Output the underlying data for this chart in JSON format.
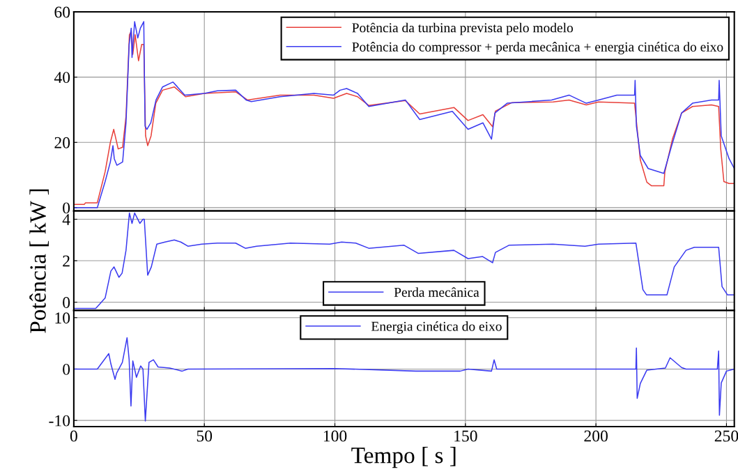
{
  "chart_data": [
    {
      "type": "line",
      "xlim": [
        0,
        253
      ],
      "xticks": [
        0,
        50,
        100,
        150,
        200,
        250
      ],
      "ylim": [
        -1,
        60
      ],
      "yticks": [
        0,
        20,
        40,
        60
      ],
      "grid": true,
      "legend": "top right",
      "tick_labels": "y",
      "series": [
        {
          "name": "Potência da turbina prevista pelo modelo",
          "color": "#e8403a",
          "x": [
            0,
            4,
            4.5,
            9,
            12,
            14,
            15.3,
            17,
            18.7,
            20,
            21.3,
            22,
            22.6,
            23.5,
            24.8,
            26,
            26.8,
            27.5,
            28.3,
            29.6,
            31.4,
            34,
            38.5,
            42.8,
            50,
            62,
            66.5,
            79,
            92,
            99.5,
            104.5,
            108.7,
            113,
            127,
            132.5,
            145.6,
            151,
            156.7,
            160.4,
            161.5,
            167.8,
            183.6,
            189.7,
            196.3,
            201,
            214.8,
            217,
            219.5,
            221.3,
            226,
            226.4,
            229.3,
            232.8,
            237,
            244.3,
            247,
            247.8,
            249,
            251,
            253
          ],
          "values": [
            1,
            1,
            1.5,
            1.5,
            11,
            20,
            24,
            18,
            18.5,
            28,
            53,
            54,
            47,
            53,
            45,
            50,
            50,
            22,
            19,
            22,
            32,
            36,
            37,
            34,
            35,
            35.5,
            33,
            34.5,
            34.5,
            33.5,
            35,
            34,
            31.3,
            32.8,
            28.7,
            30.7,
            26.7,
            28.5,
            24.8,
            29.6,
            32.2,
            32.4,
            33,
            31.5,
            32.4,
            32,
            14.6,
            7.8,
            6.7,
            6.7,
            11,
            21,
            29,
            31,
            31.5,
            31,
            18,
            8,
            7.4,
            7.4
          ]
        },
        {
          "name": "Potência do compressor + perda mecânica + energia cinética do eixo",
          "color": "#3a3af0",
          "x": [
            0,
            4,
            9,
            12,
            14,
            15,
            15.5,
            16.5,
            18.7,
            20,
            21.2,
            22,
            22.3,
            23.3,
            24.5,
            25.5,
            26.8,
            27.3,
            28,
            29.5,
            31.5,
            34,
            38,
            42.5,
            50,
            55,
            62,
            66,
            68,
            79,
            92,
            99.5,
            102,
            104.5,
            108.7,
            113,
            127,
            132.5,
            145,
            151,
            156.7,
            160,
            161.3,
            166,
            183,
            189.7,
            196.3,
            201,
            208,
            214.8,
            215,
            215.5,
            217,
            220,
            226,
            229,
            232.8,
            237,
            244.3,
            247,
            247.2,
            248,
            251,
            253
          ],
          "values": [
            0,
            0,
            0,
            8,
            14,
            19,
            15,
            13,
            14,
            26,
            50,
            55,
            46,
            57,
            52,
            55,
            57,
            25,
            24,
            26,
            33,
            37,
            38.5,
            34.5,
            35,
            35.8,
            36,
            33,
            32.5,
            34,
            35,
            34.5,
            36,
            36.5,
            35,
            31,
            33,
            27,
            29.5,
            24,
            26,
            21,
            29,
            32,
            33,
            34.5,
            32,
            33,
            34.5,
            34.5,
            39,
            25,
            16,
            12,
            10.5,
            19,
            29,
            32,
            33,
            33,
            39,
            22,
            15,
            12
          ]
        }
      ]
    },
    {
      "type": "line",
      "xlim": [
        0,
        253
      ],
      "xticks": [
        0,
        50,
        100,
        150,
        200,
        250
      ],
      "ylim": [
        -0.4,
        4.4
      ],
      "yticks": [
        0,
        2,
        4
      ],
      "grid": true,
      "legend": "bottom",
      "tick_labels": "y",
      "ylabel": "Potência [ kW ]",
      "series": [
        {
          "name": "Perda mecânica",
          "color": "#3a3af0",
          "x": [
            0,
            8.4,
            12,
            14.2,
            15.4,
            17.3,
            18.5,
            20,
            21.3,
            22.3,
            23.3,
            25.3,
            26.5,
            27,
            28.3,
            29.7,
            31.8,
            34.9,
            38.5,
            41,
            43.7,
            49,
            55,
            62,
            65.7,
            70,
            83,
            98,
            102.6,
            108,
            113,
            126.4,
            132,
            145.6,
            151,
            156.6,
            160.4,
            161.5,
            166.8,
            183.5,
            195.8,
            201,
            215.3,
            218,
            219.4,
            227.2,
            230,
            234.5,
            237.7,
            247,
            248.3,
            250.4,
            253
          ],
          "values": [
            -0.3,
            -0.3,
            0.2,
            1.5,
            1.7,
            1.2,
            1.4,
            2.5,
            4.3,
            3.8,
            4.3,
            3.8,
            4.0,
            4.0,
            1.3,
            1.7,
            2.8,
            2.9,
            3.0,
            2.9,
            2.7,
            2.8,
            2.85,
            2.85,
            2.6,
            2.7,
            2.85,
            2.8,
            2.9,
            2.85,
            2.6,
            2.75,
            2.35,
            2.5,
            2.1,
            2.2,
            1.9,
            2.4,
            2.75,
            2.8,
            2.7,
            2.8,
            2.85,
            0.6,
            0.35,
            0.35,
            1.7,
            2.5,
            2.65,
            2.65,
            0.75,
            0.35,
            0.35
          ]
        }
      ]
    },
    {
      "type": "line",
      "xlim": [
        0,
        253
      ],
      "xticks": [
        0,
        50,
        100,
        150,
        200,
        250
      ],
      "ylim": [
        -11.2,
        11.4
      ],
      "yticks": [
        -10,
        0,
        10
      ],
      "grid": true,
      "legend": "top",
      "xlabel": "Tempo [ s ]",
      "series": [
        {
          "name": "Energia cinética do eixo",
          "color": "#3a3af0",
          "x": [
            0,
            9,
            13.4,
            14.2,
            15.8,
            16.4,
            18.6,
            20.4,
            21.2,
            21.9,
            22.6,
            24,
            25.6,
            26.5,
            27.4,
            28.8,
            30.5,
            32.3,
            36.7,
            41.5,
            43.7,
            100,
            131,
            148,
            151,
            160,
            161,
            162,
            215.3,
            215.5,
            215.8,
            217,
            219.5,
            226.6,
            228.4,
            232.8,
            234.5,
            246.5,
            247,
            247.3,
            248,
            250,
            253
          ],
          "values": [
            0,
            0,
            3.0,
            1.0,
            -2,
            -0.8,
            1.3,
            6.1,
            1.8,
            -7.2,
            1.6,
            -1.6,
            0.6,
            0,
            -10.1,
            1.3,
            1.8,
            0.4,
            0.2,
            -0.4,
            0,
            0.1,
            -0.4,
            -0.4,
            0,
            -0.4,
            1.8,
            0,
            0,
            4.1,
            -5.7,
            -2.8,
            -0.2,
            0.2,
            2.2,
            0.3,
            0,
            0,
            3.5,
            -9,
            -2.7,
            -0.4,
            0
          ]
        }
      ]
    }
  ]
}
